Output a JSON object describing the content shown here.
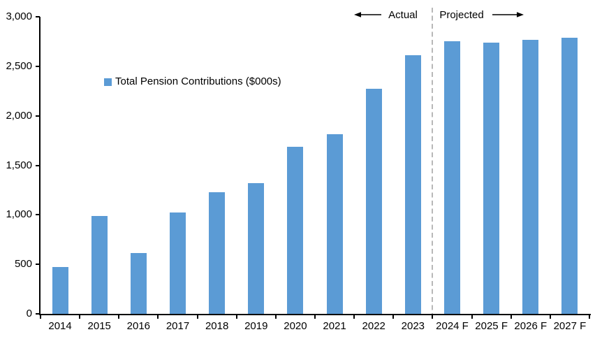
{
  "chart_data": {
    "type": "bar",
    "title": "",
    "legend": "Total Pension Contributions ($000s)",
    "categories": [
      "2014",
      "2015",
      "2016",
      "2017",
      "2018",
      "2019",
      "2020",
      "2021",
      "2022",
      "2023",
      "2024 F",
      "2025 F",
      "2026 F",
      "2027 F"
    ],
    "values": [
      470,
      990,
      615,
      1025,
      1230,
      1320,
      1685,
      1815,
      2275,
      2610,
      2750,
      2740,
      2765,
      2790
    ],
    "xlabel": "",
    "ylabel": "",
    "ylim": [
      0,
      3000
    ],
    "ytick_interval": 500,
    "ytick_labels": [
      "0",
      "500",
      "1,000",
      "1,500",
      "2,000",
      "2,500",
      "3,000"
    ],
    "grid": false,
    "legend_position": "inside-upper-left",
    "annotations": {
      "actual": "Actual",
      "projected": "Projected",
      "divider_boundary_index": 10
    },
    "colors": {
      "bar": "#5B9BD5",
      "divider": "#A6A6A6",
      "axis": "#000000",
      "text": "#000000"
    }
  }
}
